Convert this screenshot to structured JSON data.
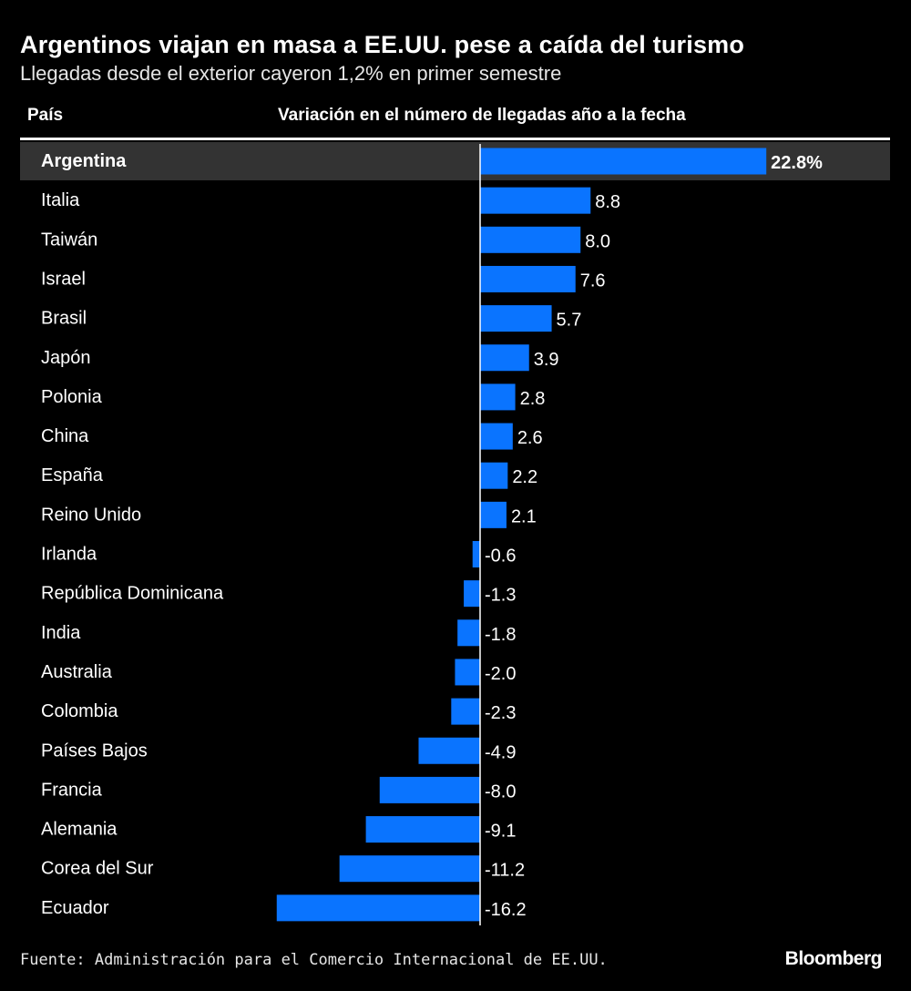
{
  "title": "Argentinos viajan en masa a EE.UU. pese a caída del turismo",
  "subtitle": "Llegadas desde el exterior cayeron 1,2% en primer semestre",
  "source": "Fuente: Administración para el Comercio Internacional de EE.UU.",
  "logo": "Bloomberg",
  "colors": {
    "bar": "#0a74ff",
    "highlight_row": "#333333",
    "background": "#000000",
    "text": "#ffffff"
  },
  "chart_data": {
    "type": "bar",
    "orientation": "horizontal",
    "category_header": "País",
    "value_header": "Variación en el número de llegadas año a la fecha",
    "highlight": "Argentina",
    "unit_suffix_first": "%",
    "categories": [
      "Argentina",
      "Italia",
      "Taiwán",
      "Israel",
      "Brasil",
      "Japón",
      "Polonia",
      "China",
      "España",
      "Reino Unido",
      "Irlanda",
      "República Dominicana",
      "India",
      "Australia",
      "Colombia",
      "Países Bajos",
      "Francia",
      "Alemania",
      "Corea del Sur",
      "Ecuador"
    ],
    "values": [
      22.8,
      8.8,
      8.0,
      7.6,
      5.7,
      3.9,
      2.8,
      2.6,
      2.2,
      2.1,
      -0.6,
      -1.3,
      -1.8,
      -2.0,
      -2.3,
      -4.9,
      -8.0,
      -9.1,
      -11.2,
      -16.2
    ],
    "labels": [
      "22.8%",
      "8.8",
      "8.0",
      "7.6",
      "5.7",
      "3.9",
      "2.8",
      "2.6",
      "2.2",
      "2.1",
      "-0.6",
      "-1.3",
      "-1.8",
      "-2.0",
      "-2.3",
      "-4.9",
      "-8.0",
      "-9.1",
      "-11.2",
      "-16.2"
    ]
  }
}
